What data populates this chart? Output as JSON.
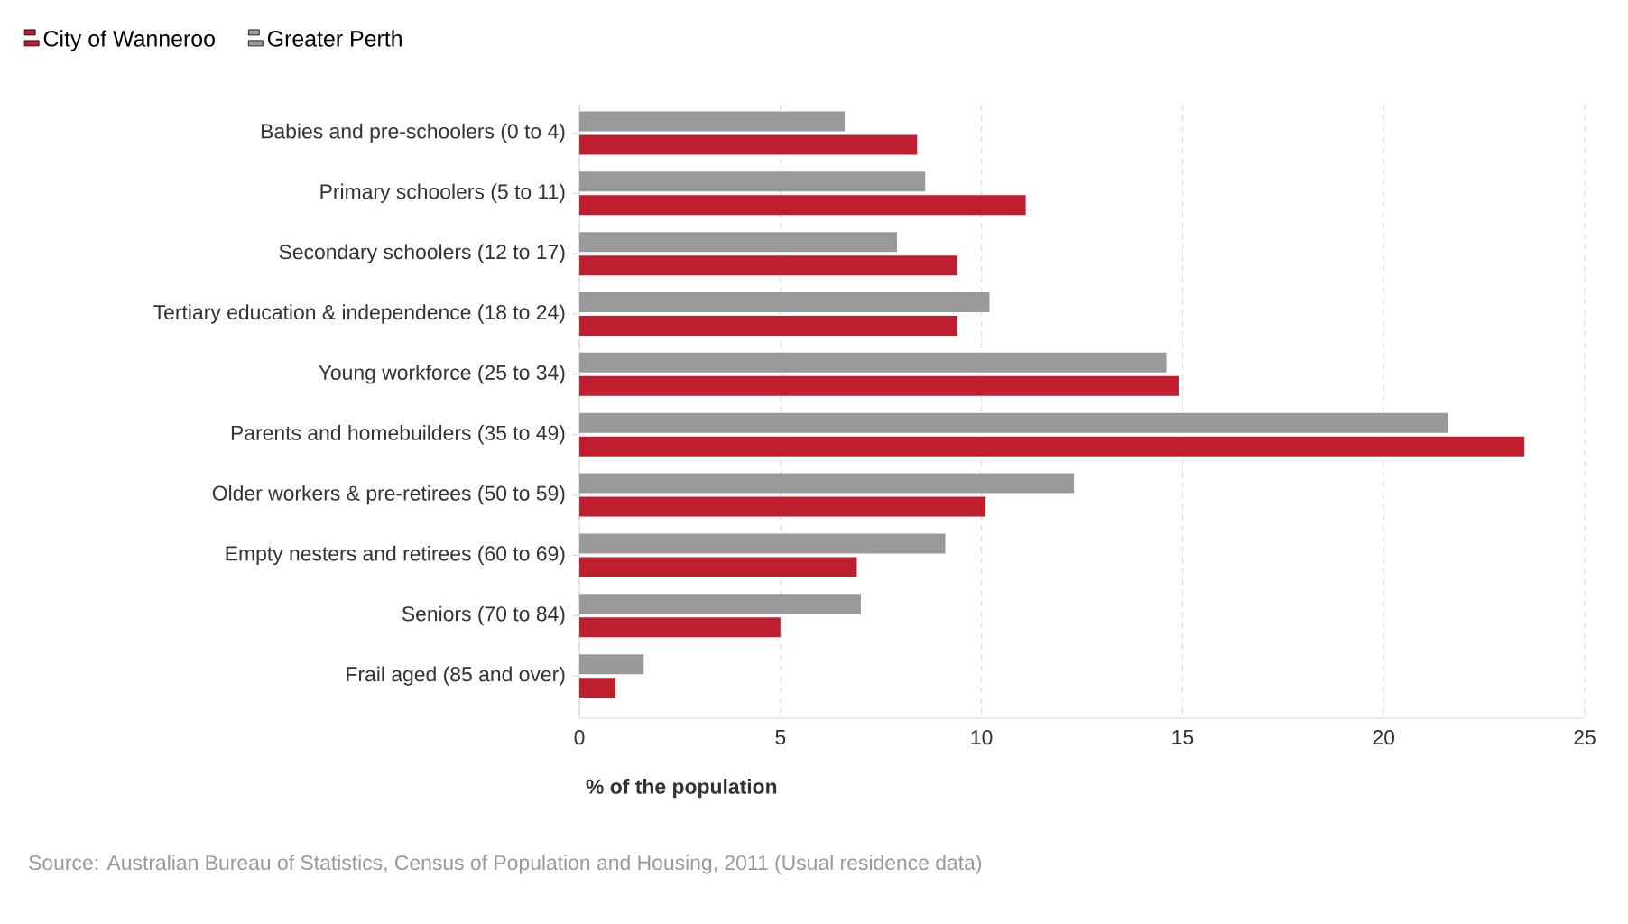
{
  "chart_data": {
    "type": "bar",
    "orientation": "horizontal",
    "categories": [
      "Babies and pre-schoolers (0 to 4)",
      "Primary schoolers (5 to 11)",
      "Secondary schoolers (12 to 17)",
      "Tertiary education & independence (18 to 24)",
      "Young workforce (25 to 34)",
      "Parents and homebuilders (35 to 49)",
      "Older workers & pre-retirees (50 to 59)",
      "Empty nesters and retirees (60 to 69)",
      "Seniors (70 to 84)",
      "Frail aged (85 and over)"
    ],
    "series": [
      {
        "name": "City of Wanneroo",
        "color": "#be1e2d",
        "values": [
          8.4,
          11.1,
          9.4,
          9.4,
          14.9,
          23.5,
          10.1,
          6.9,
          5.0,
          0.9
        ]
      },
      {
        "name": "Greater Perth",
        "color": "#999999",
        "values": [
          6.6,
          8.6,
          7.9,
          10.2,
          14.6,
          21.6,
          12.3,
          9.1,
          7.0,
          1.6
        ]
      }
    ],
    "xlabel": "% of the population",
    "xlim": [
      0,
      25
    ],
    "xticks": [
      0,
      5,
      10,
      15,
      20,
      25
    ],
    "grid": "x",
    "legend": "top left",
    "annotations": [
      "Source: Australian Bureau of Statistics, Census of Population and Housing, 2011 (Usual residence data)"
    ]
  }
}
